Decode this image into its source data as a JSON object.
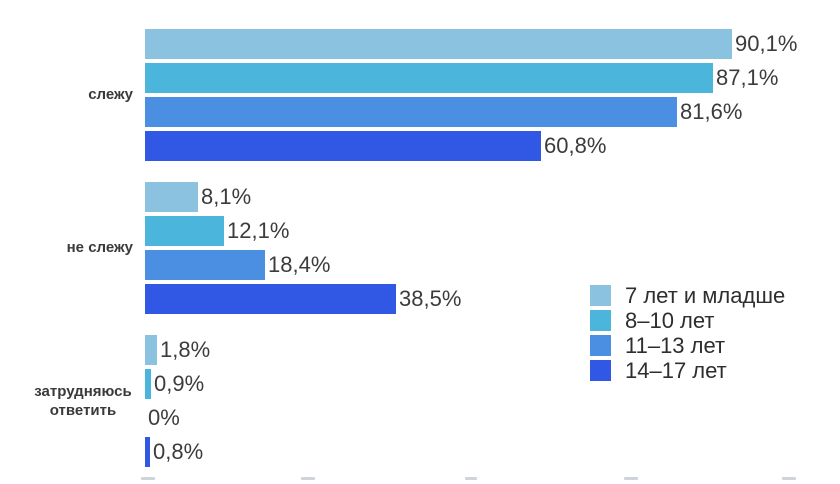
{
  "chart_data": {
    "type": "bar",
    "orientation": "horizontal",
    "title": "",
    "xlabel": "",
    "ylabel": "",
    "xlim": [
      0,
      100
    ],
    "grid": false,
    "unit": "%",
    "value_format": "comma-decimal-percent",
    "legend_position": "middle-right",
    "categories": [
      "слежу",
      "не слежу",
      "затрудняюсь ответить"
    ],
    "series": [
      {
        "name": "7 лет и младше",
        "color": "#8AC2DF",
        "values": [
          90.1,
          8.1,
          1.8
        ],
        "labels": [
          "90,1%",
          "8,1%",
          "1,8%"
        ]
      },
      {
        "name": "8–10 лет",
        "color": "#4BB5DC",
        "values": [
          87.1,
          12.1,
          0.9
        ],
        "labels": [
          "87,1%",
          "12,1%",
          "0,9%"
        ]
      },
      {
        "name": "11–13 лет",
        "color": "#4A8FE2",
        "values": [
          81.6,
          18.4,
          0
        ],
        "labels": [
          "81,6%",
          "18,4%",
          "0%"
        ]
      },
      {
        "name": "14–17 лет",
        "color": "#3058E4",
        "values": [
          60.8,
          38.5,
          0.8
        ],
        "labels": [
          "60,8%",
          "38,5%",
          "0,8%"
        ]
      }
    ]
  }
}
